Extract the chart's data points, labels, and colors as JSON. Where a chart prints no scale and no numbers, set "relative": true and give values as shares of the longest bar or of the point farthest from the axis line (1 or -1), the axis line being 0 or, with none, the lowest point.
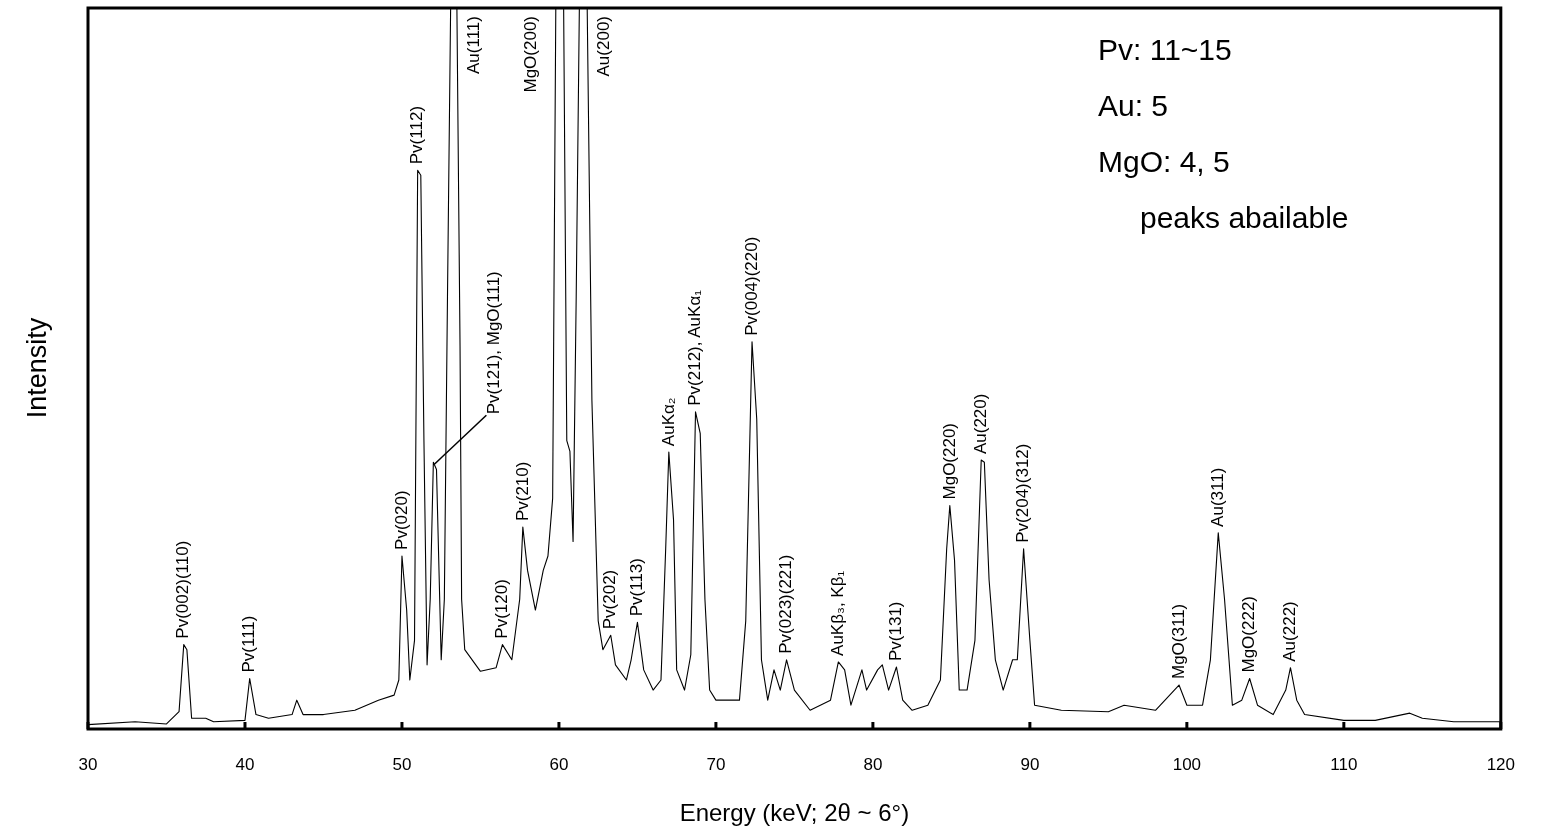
{
  "chart_data": {
    "type": "line",
    "xlabel": "Energy (keV; 2θ ~ 6°)",
    "ylabel": "Intensity",
    "relative": true,
    "xlim": [
      30,
      120
    ],
    "xticks": [
      30,
      40,
      50,
      60,
      70,
      80,
      90,
      100,
      110,
      120
    ],
    "tick_labels": "x",
    "grid": false,
    "legend": false,
    "marker": "none",
    "line_style": "solid",
    "series": [
      {
        "color": "#000000",
        "x": [
          30,
          33,
          35,
          35.8,
          36.1,
          36.3,
          36.6,
          37.5,
          38,
          40,
          40.3,
          40.7,
          41.5,
          43,
          43.3,
          43.7,
          45,
          47,
          48.5,
          49.5,
          49.8,
          50.0,
          50.3,
          50.5,
          50.8,
          51.0,
          51.2,
          51.4,
          51.6,
          51.8,
          52.0,
          52.2,
          52.5,
          52.7,
          52.9,
          53.1,
          53.5,
          53.7,
          53.8,
          54.0,
          55,
          56,
          56.4,
          57,
          57.5,
          57.7,
          58,
          58.5,
          59,
          59.3,
          59.6,
          59.8,
          60.3,
          60.5,
          60.7,
          60.9,
          61.1,
          61.3,
          61.8,
          62.1,
          62.5,
          62.8,
          63.3,
          63.6,
          64.3,
          64.6,
          65.0,
          65.4,
          66,
          66.5,
          66.8,
          67.0,
          67.3,
          67.5,
          68,
          68.4,
          68.7,
          69.0,
          69.3,
          69.6,
          70,
          71.5,
          71.9,
          72.3,
          72.6,
          72.9,
          73.3,
          73.7,
          74.1,
          74.5,
          75.0,
          76,
          77.3,
          77.8,
          78.2,
          78.6,
          79.3,
          79.6,
          80.3,
          80.6,
          81,
          81.5,
          81.9,
          82.5,
          83.5,
          84.3,
          84.7,
          84.9,
          85.2,
          85.5,
          86,
          86.5,
          86.9,
          87.1,
          87.4,
          87.8,
          88.3,
          88.9,
          89.2,
          89.6,
          90.0,
          90.3,
          92,
          95,
          96,
          98,
          99.5,
          100,
          101,
          101.5,
          102.0,
          102.4,
          102.9,
          103.5,
          104.0,
          104.5,
          105.5,
          106.3,
          106.6,
          107.0,
          107.5,
          110,
          112,
          114.2,
          115,
          117,
          120
        ],
        "values": [
          0.006,
          0.01,
          0.007,
          0.024,
          0.117,
          0.11,
          0.015,
          0.015,
          0.01,
          0.012,
          0.07,
          0.02,
          0.015,
          0.02,
          0.04,
          0.02,
          0.02,
          0.026,
          0.04,
          0.047,
          0.068,
          0.24,
          0.165,
          0.068,
          0.123,
          0.775,
          0.768,
          0.4,
          0.089,
          0.18,
          0.37,
          0.36,
          0.096,
          0.18,
          0.6,
          1,
          1,
          0.53,
          0.18,
          0.11,
          0.08,
          0.085,
          0.117,
          0.096,
          0.18,
          0.28,
          0.22,
          0.165,
          0.22,
          0.24,
          0.32,
          1,
          1,
          0.4,
          0.385,
          0.26,
          0.6,
          1,
          1,
          0.456,
          0.15,
          0.11,
          0.13,
          0.089,
          0.068,
          0.096,
          0.148,
          0.082,
          0.054,
          0.068,
          0.25,
          0.384,
          0.29,
          0.082,
          0.054,
          0.103,
          0.44,
          0.41,
          0.18,
          0.054,
          0.04,
          0.04,
          0.15,
          0.537,
          0.43,
          0.096,
          0.04,
          0.082,
          0.054,
          0.096,
          0.054,
          0.026,
          0.04,
          0.093,
          0.082,
          0.033,
          0.082,
          0.054,
          0.082,
          0.089,
          0.054,
          0.086,
          0.04,
          0.026,
          0.033,
          0.068,
          0.25,
          0.31,
          0.234,
          0.054,
          0.054,
          0.123,
          0.373,
          0.37,
          0.207,
          0.096,
          0.054,
          0.096,
          0.096,
          0.25,
          0.123,
          0.033,
          0.026,
          0.024,
          0.033,
          0.026,
          0.061,
          0.033,
          0.033,
          0.096,
          0.272,
          0.18,
          0.033,
          0.04,
          0.07,
          0.033,
          0.02,
          0.054,
          0.085,
          0.04,
          0.02,
          0.012,
          0.012,
          0.022,
          0.015,
          0.01,
          0.01
        ]
      }
    ],
    "annotations": [
      {
        "text": "Pv(002)(110)",
        "x": 36.1,
        "y": 0.117
      },
      {
        "text": "Pv(111)",
        "x": 40.3,
        "y": 0.07
      },
      {
        "text": "Pv(020)",
        "x": 50.0,
        "y": 0.24
      },
      {
        "text": "Pv(112)",
        "x": 51.0,
        "y": 0.775
      },
      {
        "text": "Pv(121), MgO(111)",
        "x": 52.0,
        "y": 0.37
      },
      {
        "text": "Au(111)",
        "x": 53.5,
        "y": 1
      },
      {
        "text": "MgO(200)",
        "x": 59.8,
        "y": 1
      },
      {
        "text": "Au(200)",
        "x": 61.8,
        "y": 1
      },
      {
        "text": "Pv(120)",
        "x": 56.4,
        "y": 0.117
      },
      {
        "text": "Pv(210)",
        "x": 57.7,
        "y": 0.28
      },
      {
        "text": "Pv(202)",
        "x": 63.3,
        "y": 0.13
      },
      {
        "text": "Pv(113)",
        "x": 65.0,
        "y": 0.148
      },
      {
        "text": "AuKα₂",
        "x": 67.0,
        "y": 0.384
      },
      {
        "text": "Pv(212), AuKα₁",
        "x": 68.7,
        "y": 0.44
      },
      {
        "text": "Pv(004)(220)",
        "x": 72.3,
        "y": 0.537
      },
      {
        "text": "Pv(023)(221)",
        "x": 74.5,
        "y": 0.096
      },
      {
        "text": "AuKβ₃, Kβ₁",
        "x": 77.8,
        "y": 0.093
      },
      {
        "text": "Pv(131)",
        "x": 81.5,
        "y": 0.086
      },
      {
        "text": "MgO(220)",
        "x": 84.9,
        "y": 0.31
      },
      {
        "text": "Au(220)",
        "x": 86.9,
        "y": 0.373
      },
      {
        "text": "Pv(204)(312)",
        "x": 89.6,
        "y": 0.25
      },
      {
        "text": "MgO(311)",
        "x": 99.5,
        "y": 0.061
      },
      {
        "text": "Au(311)",
        "x": 102.0,
        "y": 0.272
      },
      {
        "text": "MgO(222)",
        "x": 104.0,
        "y": 0.07
      },
      {
        "text": "Au(222)",
        "x": 106.6,
        "y": 0.085
      },
      "Pv: 11~15",
      "Au: 5",
      "MgO: 4, 5",
      "peaks abailable"
    ]
  }
}
